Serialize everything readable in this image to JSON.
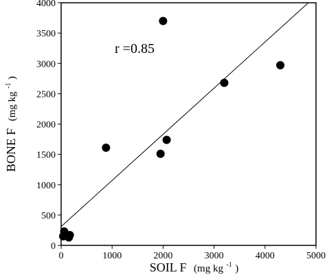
{
  "chart_data": {
    "type": "scatter",
    "xlabel": "SOIL F",
    "xlabel_unit_main": "(mg kg",
    "xlabel_unit_sup": "-1",
    "xlabel_unit_close": ")",
    "ylabel": "BONE F",
    "ylabel_unit_main": "(mg kg",
    "ylabel_unit_sup": "-1",
    "ylabel_unit_close": ")",
    "xlim": [
      0,
      5000
    ],
    "ylim": [
      0,
      4000
    ],
    "x_ticks": [
      0,
      1000,
      2000,
      3000,
      4000,
      5000
    ],
    "y_ticks": [
      0,
      500,
      1000,
      1500,
      2000,
      2500,
      3000,
      3500,
      4000
    ],
    "annotation": "r =0.85",
    "grid": false,
    "legend": "none",
    "points": [
      {
        "x": 60,
        "y": 230
      },
      {
        "x": 40,
        "y": 150
      },
      {
        "x": 90,
        "y": 170
      },
      {
        "x": 150,
        "y": 130
      },
      {
        "x": 170,
        "y": 170
      },
      {
        "x": 880,
        "y": 1610
      },
      {
        "x": 1950,
        "y": 1510
      },
      {
        "x": 2070,
        "y": 1740
      },
      {
        "x": 2000,
        "y": 3700
      },
      {
        "x": 3200,
        "y": 2680
      },
      {
        "x": 4300,
        "y": 2970
      }
    ],
    "regression_line": {
      "x": [
        0,
        4850
      ],
      "y": [
        310,
        4000
      ]
    },
    "colors": {
      "marker": "#000000",
      "axis": "#000000",
      "line": "#000000"
    }
  }
}
